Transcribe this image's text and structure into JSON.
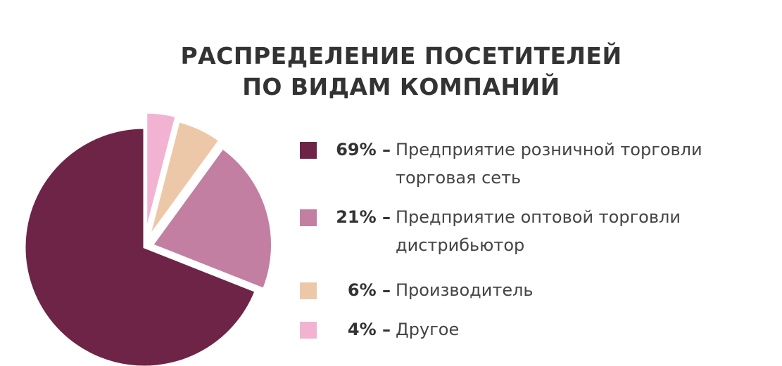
{
  "title": {
    "line1": "РАСПРЕДЕЛЕНИЕ ПОСЕТИТЕЛЕЙ",
    "line2": "ПО ВИДАМ КОМПАНИЙ"
  },
  "chart_data": {
    "type": "pie",
    "title": "РАСПРЕДЕЛЕНИЕ ПОСЕТИТЕЛЕЙ ПО ВИДАМ КОМПАНИЙ",
    "slices": [
      {
        "pct_label": "69% –",
        "label": "Предприятие розничной торговли",
        "sub": "торговая сеть",
        "value": 69,
        "color": "#6e2446"
      },
      {
        "pct_label": "21% –",
        "label": "Предприятие оптовой торговли",
        "sub": "дистрибьютор",
        "value": 21,
        "color": "#c27fa1"
      },
      {
        "pct_label": "6% –",
        "label": "Производитель",
        "sub": "",
        "value": 6,
        "color": "#edc8a8"
      },
      {
        "pct_label": "4% –",
        "label": "Другое",
        "sub": "",
        "value": 4,
        "color": "#f2b3d2"
      }
    ],
    "legend": "right"
  }
}
